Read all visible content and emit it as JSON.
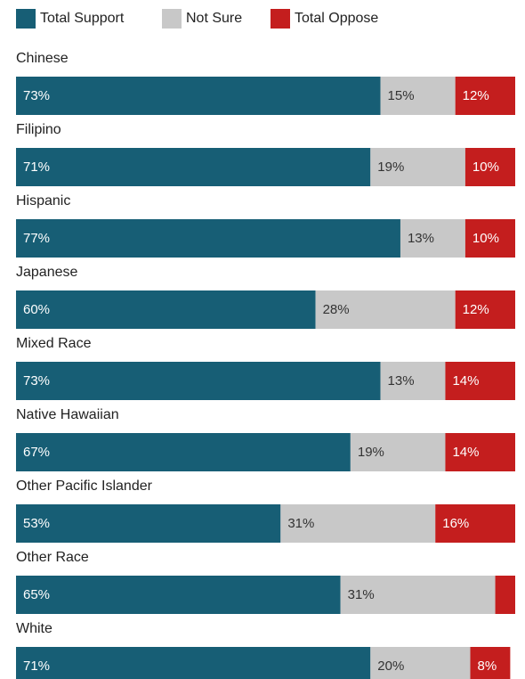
{
  "chart_data": {
    "type": "stacked_bar_horizontal",
    "categories": [
      "Chinese",
      "Filipino",
      "Hispanic",
      "Japanese",
      "Mixed Race",
      "Native Hawaiian",
      "Other Pacific Islander",
      "Other Race",
      "White"
    ],
    "series": [
      {
        "name": "Total Support",
        "color": "#175e75",
        "values": [
          73,
          71,
          77,
          60,
          73,
          67,
          53,
          65,
          71
        ],
        "value_labels": [
          "73%",
          "71%",
          "77%",
          "60%",
          "73%",
          "67%",
          "53%",
          "65%",
          "71%"
        ]
      },
      {
        "name": "Not Sure",
        "color": "#c8c8c8",
        "values": [
          15,
          19,
          13,
          28,
          13,
          19,
          31,
          31,
          20
        ],
        "value_labels": [
          "15%",
          "19%",
          "13%",
          "28%",
          "13%",
          "19%",
          "31%",
          "31%",
          "20%"
        ]
      },
      {
        "name": "Total Oppose",
        "color": "#c41e1e",
        "values": [
          12,
          10,
          10,
          12,
          14,
          14,
          16,
          4,
          8
        ],
        "value_labels": [
          "12%",
          "10%",
          "10%",
          "12%",
          "14%",
          "14%",
          "16%",
          null,
          "8%"
        ]
      }
    ],
    "xlim": [
      0,
      100
    ]
  }
}
